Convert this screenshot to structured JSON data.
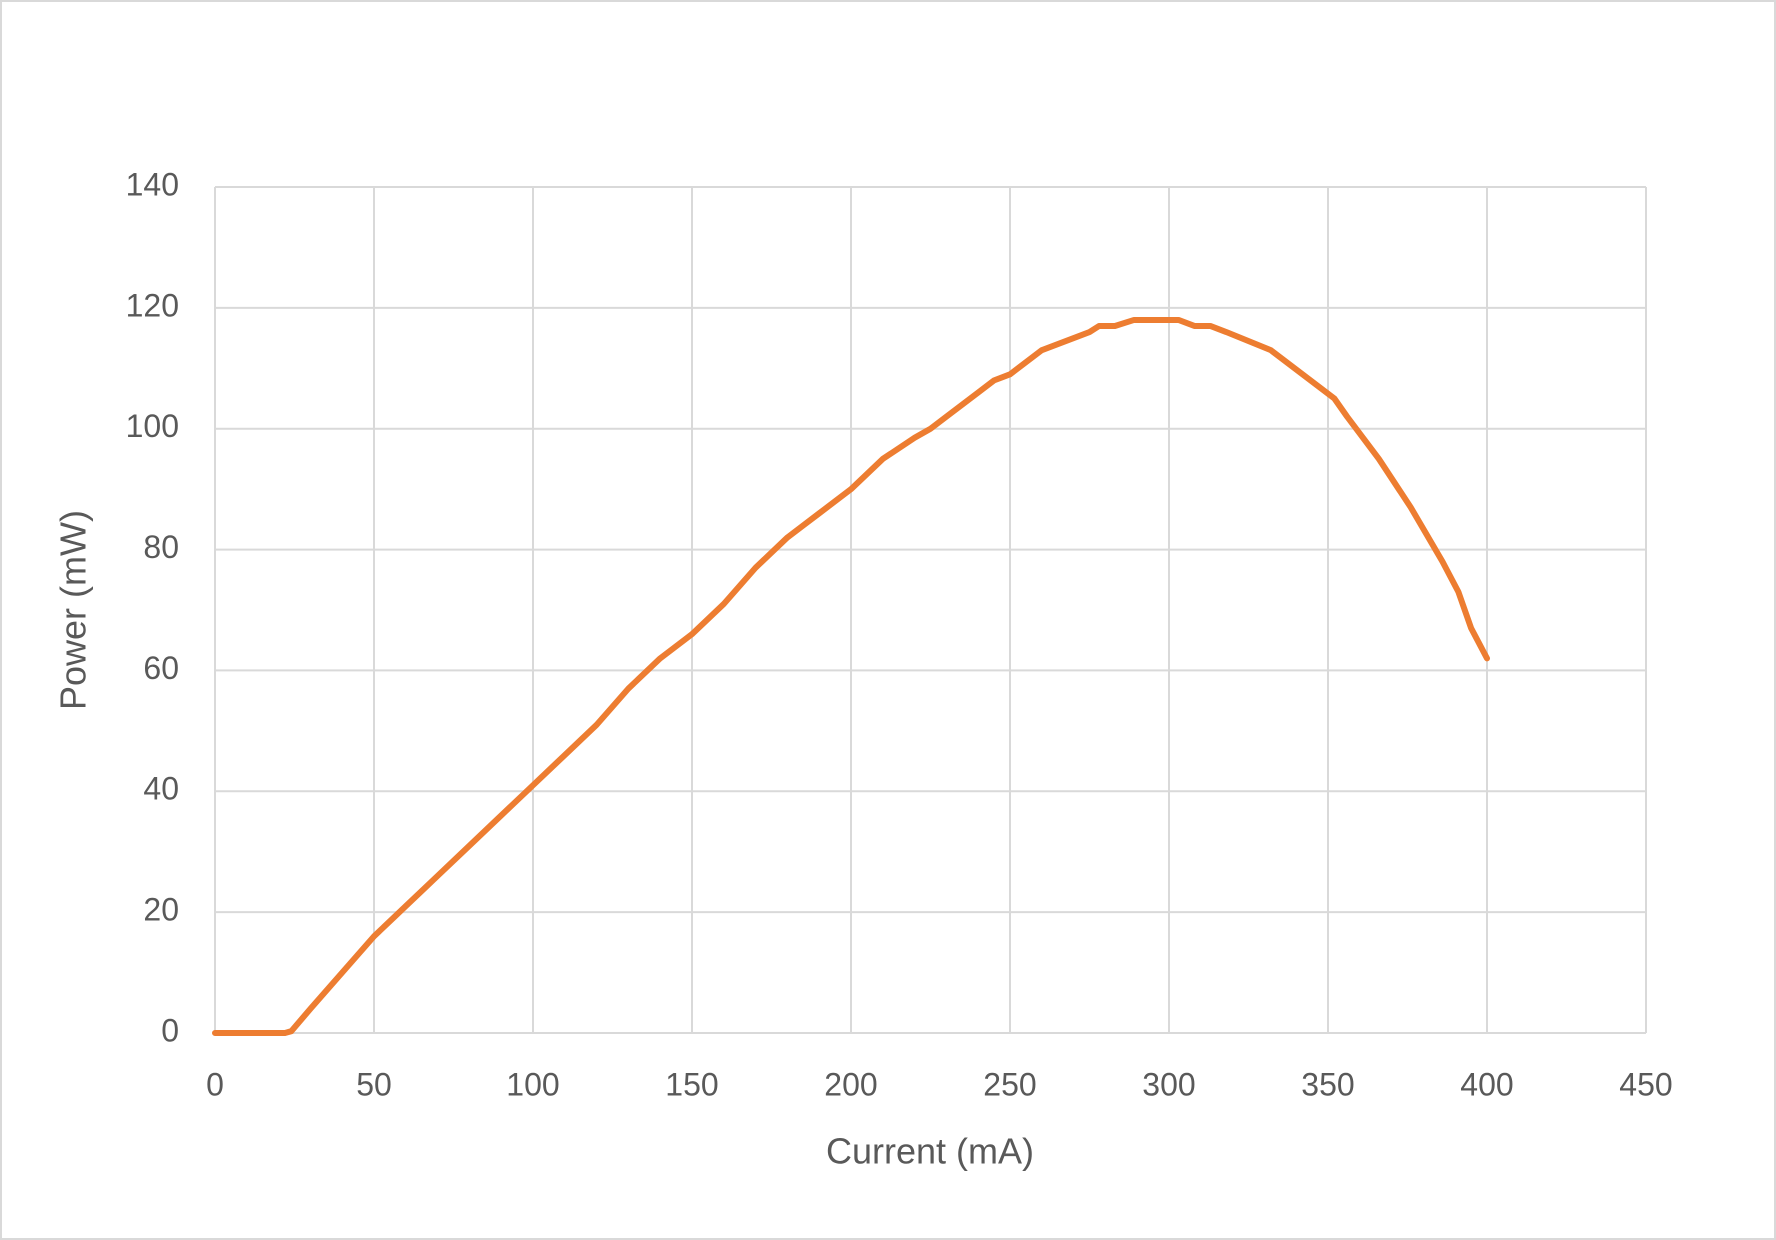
{
  "chart_data": {
    "type": "line",
    "x_label": "Current (mA)",
    "y_label": "Power (mW)",
    "series": [
      {
        "name": "Power",
        "color": "#ed7d31",
        "x": [
          0,
          10,
          22,
          24,
          30,
          40,
          50,
          56,
          60,
          70,
          80,
          90,
          94,
          100,
          110,
          120,
          125,
          130,
          140,
          150,
          160,
          165,
          170,
          180,
          185,
          190,
          200,
          205,
          210,
          220,
          225,
          230,
          240,
          245,
          250,
          260,
          275,
          278,
          283,
          289,
          303,
          308,
          313,
          318,
          332,
          352,
          356,
          366,
          376,
          386,
          391,
          395,
          400
        ],
        "values": [
          0,
          0,
          0,
          0.3,
          4,
          10,
          16,
          19,
          21,
          26,
          31,
          36,
          38,
          41,
          46,
          51,
          54,
          57,
          62,
          66,
          71,
          74,
          77,
          82,
          84,
          86,
          90,
          92.5,
          95,
          98.5,
          100,
          102,
          106,
          108,
          109,
          113,
          116,
          117,
          117,
          118,
          118,
          117,
          117,
          116,
          113,
          105,
          102,
          95,
          87,
          78,
          73,
          67,
          62
        ]
      }
    ],
    "xlim": [
      0,
      450
    ],
    "xticks": [
      0,
      50,
      100,
      150,
      200,
      250,
      300,
      350,
      400,
      450
    ],
    "ylim": [
      0,
      140
    ],
    "yticks": [
      0,
      20,
      40,
      60,
      80,
      100,
      120,
      140
    ],
    "grid": true
  }
}
